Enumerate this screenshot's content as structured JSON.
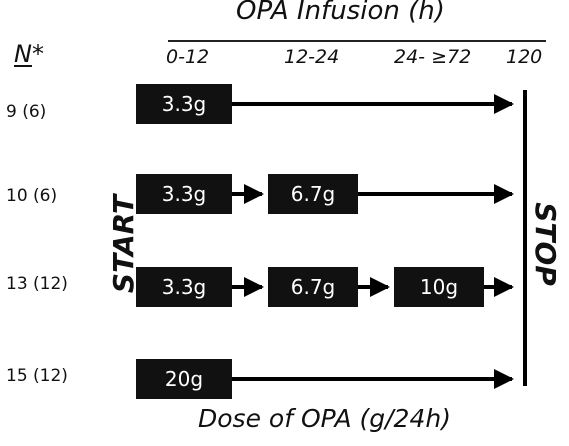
{
  "header": {
    "title": "OPA Infusion (h)",
    "n_label": "N",
    "n_suffix": "*"
  },
  "columns": [
    "0-12",
    "12-24",
    "24- ≥72",
    "120"
  ],
  "rows": [
    {
      "label": "9 (6)",
      "doses": [
        "3.3g"
      ]
    },
    {
      "label": "10 (6)",
      "doses": [
        "3.3g",
        "6.7g"
      ]
    },
    {
      "label": "13 (12)",
      "doses": [
        "3.3g",
        "6.7g",
        "10g"
      ]
    },
    {
      "label": "15 (12)",
      "doses": [
        "20g"
      ]
    }
  ],
  "start_label": "START",
  "stop_label": "STOP",
  "footer": "Dose of OPA (g/24h)",
  "colors": {
    "box": "#111111",
    "text": "#ffffff",
    "arrow": "#000000"
  }
}
